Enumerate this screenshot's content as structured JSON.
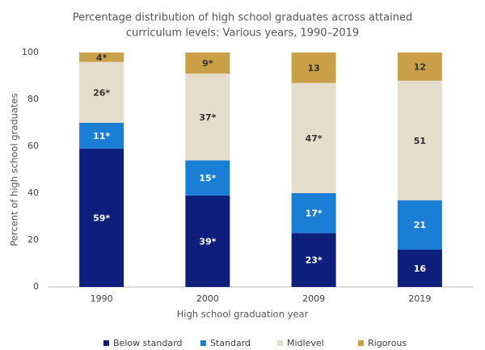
{
  "chart_data": {
    "type": "stacked_bar",
    "title": [
      "Percentage distribution of high school graduates across attained",
      "curriculum levels: Various years, 1990–2019"
    ],
    "x_label": "High school graduation year",
    "y_label": "Percent of high school graduates",
    "categories": [
      "1990",
      "2000",
      "2009",
      "2019"
    ],
    "series": [
      {
        "name": "Below standard",
        "color": "#0d1f7a",
        "values": [
          59,
          39,
          23,
          16
        ],
        "value_labels": [
          "59*",
          "39*",
          "23*",
          "16"
        ]
      },
      {
        "name": "Standard",
        "color": "#1a7fd4",
        "values": [
          11,
          15,
          17,
          21
        ],
        "value_labels": [
          "11*",
          "15*",
          "17*",
          "21"
        ]
      },
      {
        "name": "Midlevel",
        "color": "#e6dccb",
        "values": [
          26,
          37,
          47,
          51
        ],
        "value_labels": [
          "26*",
          "37*",
          "47*",
          "51"
        ]
      },
      {
        "name": "Rigorous",
        "color": "#c9a048",
        "values": [
          4,
          9,
          13,
          12
        ],
        "value_labels": [
          "4*",
          "9*",
          "13",
          "12"
        ]
      }
    ],
    "ylim": [
      0,
      100
    ],
    "yticks": [
      0,
      20,
      40,
      60,
      80,
      100
    ],
    "grid": false,
    "legend": "bottom"
  }
}
